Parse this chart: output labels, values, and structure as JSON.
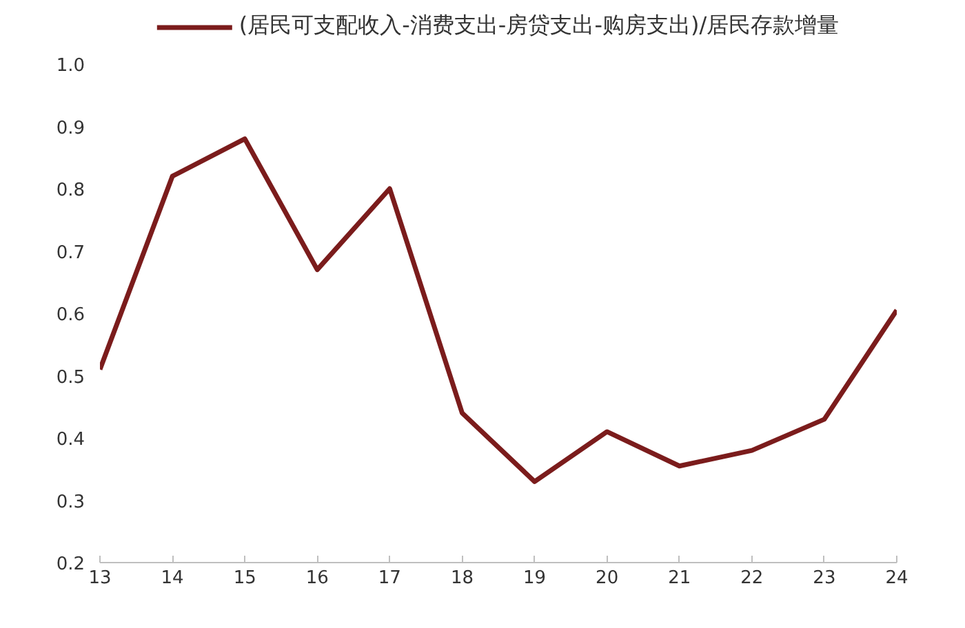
{
  "chart_data": {
    "type": "line",
    "x": [
      13,
      14,
      15,
      16,
      17,
      18,
      19,
      20,
      21,
      22,
      23,
      24
    ],
    "series": [
      {
        "name": "(居民可支配收入-消费支出-房贷支出-购房支出)/居民存款增量",
        "color": "#7b1c1c",
        "values": [
          0.51,
          0.82,
          0.88,
          0.67,
          0.8,
          0.44,
          0.33,
          0.41,
          0.355,
          0.38,
          0.43,
          0.605
        ]
      }
    ],
    "xlim": [
      13,
      24
    ],
    "xticks": [
      13,
      14,
      15,
      16,
      17,
      18,
      19,
      20,
      21,
      22,
      23,
      24
    ],
    "ylim": [
      0.2,
      1.0
    ],
    "yticks": [
      {
        "value": 0.2,
        "label": "0.2"
      },
      {
        "value": 0.3,
        "label": "0.3"
      },
      {
        "value": 0.4,
        "label": "0.4"
      },
      {
        "value": 0.5,
        "label": "0.5"
      },
      {
        "value": 0.6,
        "label": "0.6"
      },
      {
        "value": 0.7,
        "label": "0.7"
      },
      {
        "value": 0.8,
        "label": "0.8"
      },
      {
        "value": 0.9,
        "label": "0.9"
      },
      {
        "value": 1.0,
        "label": "1.0"
      }
    ],
    "grid": false,
    "legend": "top",
    "line_style": "solid",
    "marker": "none"
  }
}
